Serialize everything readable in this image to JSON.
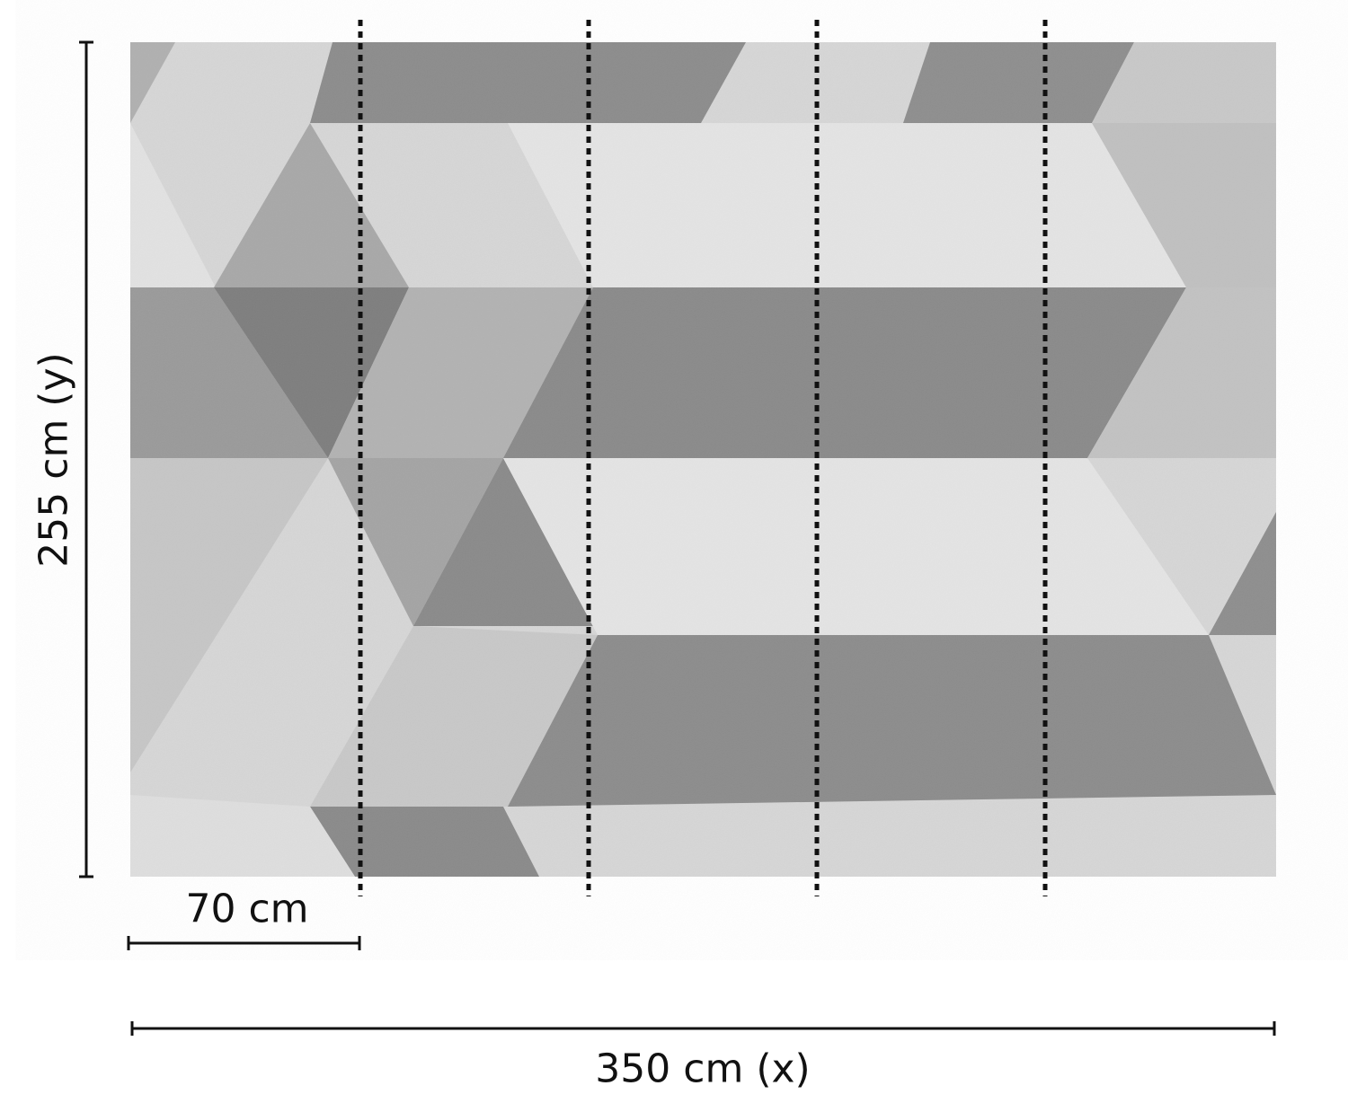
{
  "dimensions": {
    "height_label": "255 cm (y)",
    "panel_width_label": "70 cm",
    "width_label": "350 cm (x)"
  },
  "panel_count": 5,
  "pattern": {
    "description_colors": {
      "light": "#dcdcdc",
      "mid": "#b4b4b4",
      "dark": "#8c8c8c"
    }
  },
  "line_color": "#111111"
}
